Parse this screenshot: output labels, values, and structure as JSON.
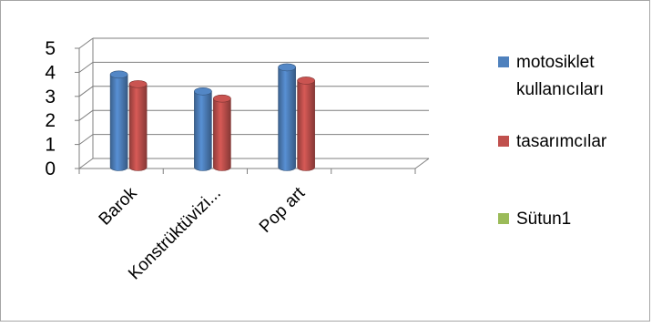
{
  "chart_data": {
    "type": "bar",
    "style": "3d-clustered-column",
    "categories": [
      "Barok",
      "Konstrüktüvizi...",
      "Pop art",
      ""
    ],
    "series": [
      {
        "name": "motosiklet kullanıcıları",
        "values": [
          3.7,
          3.0,
          4.0,
          null
        ],
        "color": "#4f81bd"
      },
      {
        "name": "tasarımcılar",
        "values": [
          3.3,
          2.7,
          3.45,
          null
        ],
        "color": "#c0504d"
      },
      {
        "name": "Sütun1",
        "values": [
          null,
          null,
          null,
          null
        ],
        "color": "#9bbb59"
      }
    ],
    "y_ticks": [
      "0",
      "1",
      "2",
      "3",
      "4",
      "5"
    ],
    "ylim": [
      0,
      5
    ],
    "grid": true,
    "legend_position": "right"
  }
}
